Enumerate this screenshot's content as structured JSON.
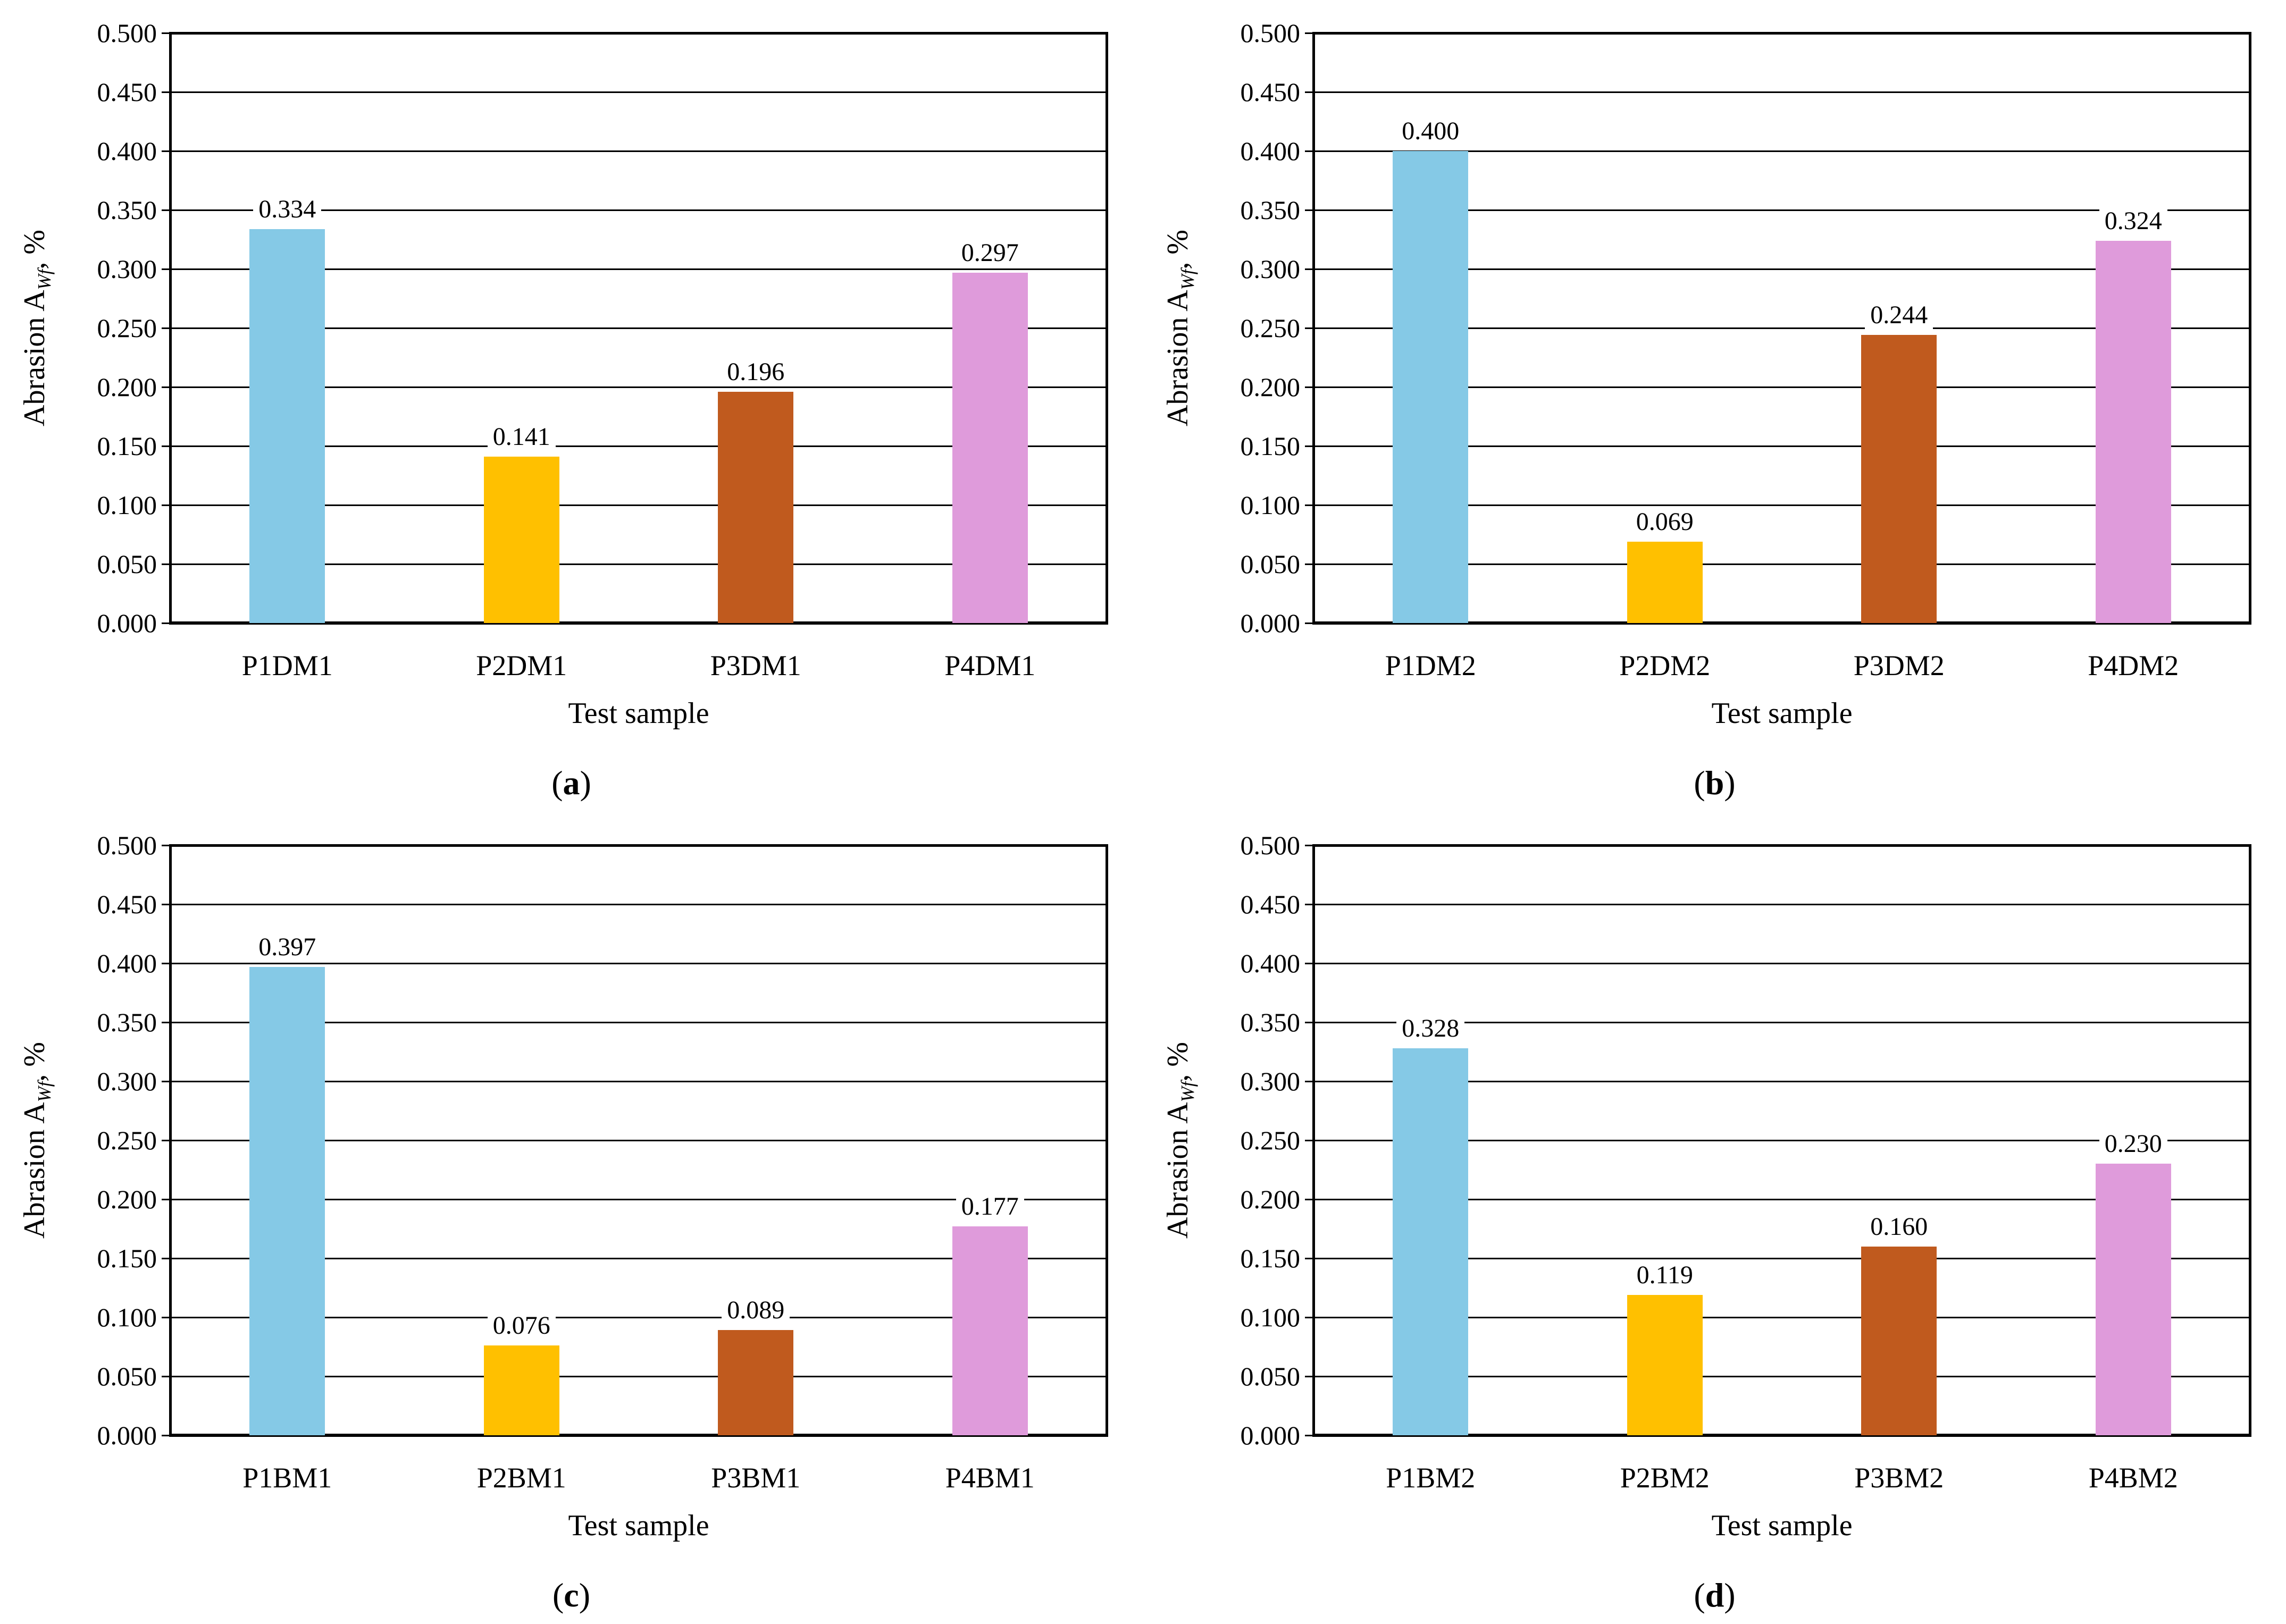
{
  "figure": {
    "background": "#ffffff"
  },
  "y_axis": {
    "title_prefix": "Abrasion A",
    "title_sub": "Wf",
    "title_suffix": ", %",
    "ticks": [
      "0.500",
      "0.450",
      "0.400",
      "0.350",
      "0.300",
      "0.250",
      "0.200",
      "0.150",
      "0.100",
      "0.050",
      "0.000"
    ],
    "min": 0.0,
    "max": 0.5,
    "step": 0.05
  },
  "bar_colors": [
    "#85C9E6",
    "#FFC000",
    "#C05A1E",
    "#DF9BDB"
  ],
  "chart_data": [
    {
      "type": "bar",
      "panel": "a",
      "title": "",
      "xlabel": "Test sample",
      "ylabel": "Abrasion AWf, %",
      "ylim": [
        0,
        0.5
      ],
      "grid": true,
      "legend": "none",
      "categories": [
        "P1DM1",
        "P2DM1",
        "P3DM1",
        "P4DM1"
      ],
      "values": [
        0.334,
        0.141,
        0.196,
        0.297
      ],
      "value_labels": [
        "0.334",
        "0.141",
        "0.196",
        "0.297"
      ],
      "caption": {
        "pre": "(",
        "letter": "a",
        "post": ")"
      }
    },
    {
      "type": "bar",
      "panel": "b",
      "title": "",
      "xlabel": "Test sample",
      "ylabel": "Abrasion AWf, %",
      "ylim": [
        0,
        0.5
      ],
      "grid": true,
      "legend": "none",
      "categories": [
        "P1DM2",
        "P2DM2",
        "P3DM2",
        "P4DM2"
      ],
      "values": [
        0.4,
        0.069,
        0.244,
        0.324
      ],
      "value_labels": [
        "0.400",
        "0.069",
        "0.244",
        "0.324"
      ],
      "caption": {
        "pre": "(",
        "letter": "b",
        "post": ")"
      }
    },
    {
      "type": "bar",
      "panel": "c",
      "title": "",
      "xlabel": "Test sample",
      "ylabel": "Abrasion AWf, %",
      "ylim": [
        0,
        0.5
      ],
      "grid": true,
      "legend": "none",
      "categories": [
        "P1BM1",
        "P2BM1",
        "P3BM1",
        "P4BM1"
      ],
      "values": [
        0.397,
        0.076,
        0.089,
        0.177
      ],
      "value_labels": [
        "0.397",
        "0.076",
        "0.089",
        "0.177"
      ],
      "caption": {
        "pre": "(",
        "letter": "c",
        "post": ")"
      }
    },
    {
      "type": "bar",
      "panel": "d",
      "title": "",
      "xlabel": "Test sample",
      "ylabel": "Abrasion AWf, %",
      "ylim": [
        0,
        0.5
      ],
      "grid": true,
      "legend": "none",
      "categories": [
        "P1BM2",
        "P2BM2",
        "P3BM2",
        "P4BM2"
      ],
      "values": [
        0.328,
        0.119,
        0.16,
        0.23
      ],
      "value_labels": [
        "0.328",
        "0.119",
        "0.160",
        "0.230"
      ],
      "caption": {
        "pre": "(",
        "letter": "d",
        "post": ")"
      }
    }
  ]
}
